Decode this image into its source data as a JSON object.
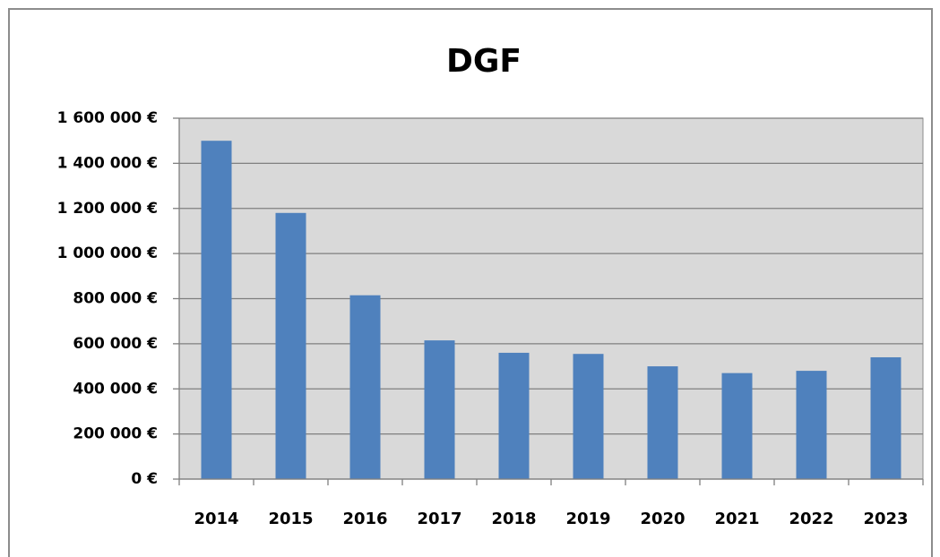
{
  "chart_data": {
    "type": "bar",
    "title": "DGF",
    "categories": [
      "2014",
      "2015",
      "2016",
      "2017",
      "2018",
      "2019",
      "2020",
      "2021",
      "2022",
      "2023"
    ],
    "values": [
      1500000,
      1180000,
      815000,
      615000,
      560000,
      555000,
      500000,
      470000,
      480000,
      540000
    ],
    "color": "#4f81bd",
    "ylim": [
      0,
      1600000
    ],
    "yticks": [
      {
        "value": 0,
        "label": "0 €"
      },
      {
        "value": 200000,
        "label": "200 000 €"
      },
      {
        "value": 400000,
        "label": "400 000 €"
      },
      {
        "value": 600000,
        "label": "600 000 €"
      },
      {
        "value": 800000,
        "label": "800 000 €"
      },
      {
        "value": 1000000,
        "label": "1 000 000 €"
      },
      {
        "value": 1200000,
        "label": "1 200 000 €"
      },
      {
        "value": 1400000,
        "label": "1 400 000 €"
      },
      {
        "value": 1600000,
        "label": "1 600 000 €"
      }
    ],
    "grid": true
  }
}
